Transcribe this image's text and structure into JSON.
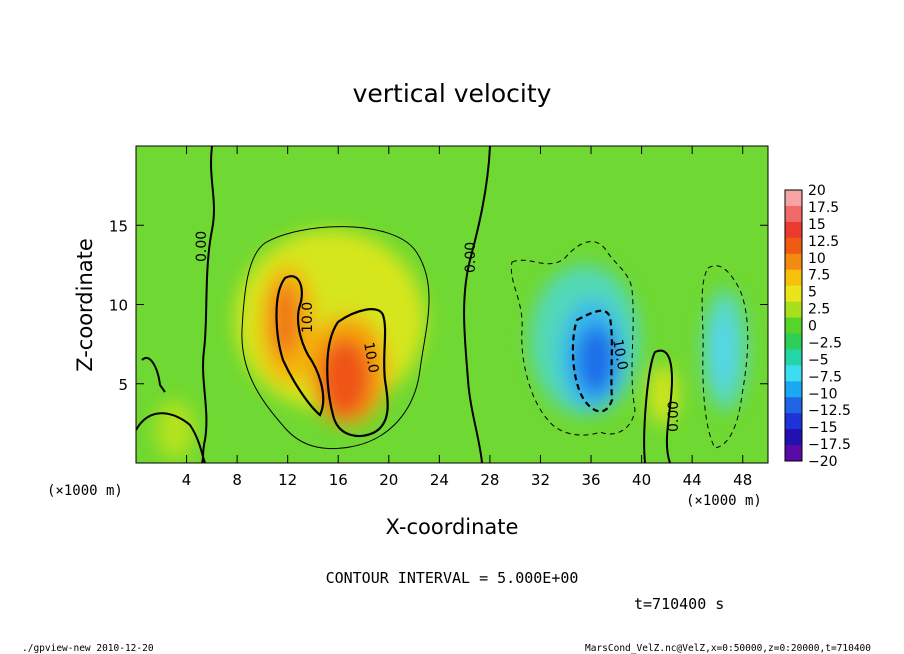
{
  "footer": {
    "left": "./gpview-new  2010-12-20",
    "right": "MarsCond_VelZ.nc@VelZ,x=0:50000,z=0:20000,t=710400"
  },
  "contour_interval": "CONTOUR INTERVAL = 5.000E+00",
  "time_label": "t=710400 s",
  "chart_data": {
    "type": "heatmap",
    "title": "vertical velocity",
    "xlabel": "X-coordinate",
    "ylabel": "Z-coordinate",
    "x_unit_left": "(×1000 m)",
    "x_unit_right": "(×1000 m)",
    "xlim": [
      0,
      50
    ],
    "ylim": [
      0,
      20
    ],
    "x_ticks": [
      "4",
      "8",
      "12",
      "16",
      "20",
      "24",
      "28",
      "32",
      "36",
      "40",
      "44",
      "48"
    ],
    "y_ticks": [
      "5",
      "10",
      "15"
    ],
    "colorbar": {
      "labels": [
        "20",
        "17.5",
        "15",
        "12.5",
        "10",
        "7.5",
        "5",
        "2.5",
        "0",
        "-2.5",
        "-5",
        "-7.5",
        "-10",
        "-12.5",
        "-15",
        "-17.5",
        "-20"
      ],
      "colors": [
        "#f7a3a3",
        "#f16a6a",
        "#eb3b2e",
        "#f05a14",
        "#f38a12",
        "#f7c00d",
        "#e9e51a",
        "#a9e01e",
        "#55d52a",
        "#2ecf58",
        "#22d6a8",
        "#3ddcf2",
        "#1aa8f0",
        "#1e66e6",
        "#1f33d8",
        "#2210b0",
        "#5a0aa8"
      ]
    },
    "contour_labels": [
      "0.00",
      "0.00",
      "10.0",
      "10.0",
      "10.0",
      "0.00"
    ],
    "features": [
      {
        "kind": "updraft",
        "x": 12.2,
        "z": 10.0,
        "peak": 12
      },
      {
        "kind": "updraft",
        "x": 17.0,
        "z": 6.5,
        "peak": 13
      },
      {
        "kind": "downdraft",
        "x": 36.5,
        "z": 7.0,
        "peak": -12
      },
      {
        "kind": "downdraft",
        "x": 46.5,
        "z": 6.0,
        "peak": -6
      }
    ]
  }
}
